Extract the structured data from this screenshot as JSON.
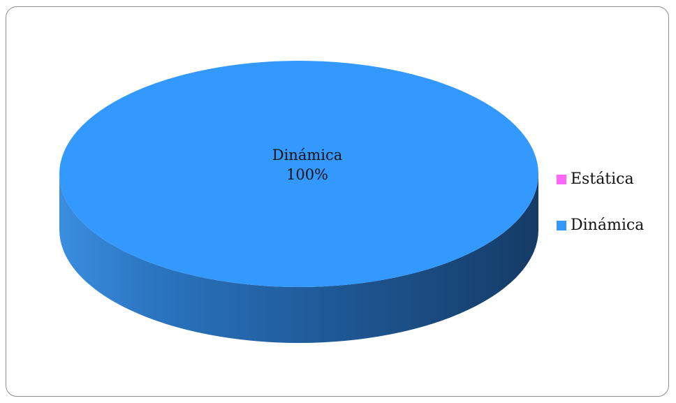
{
  "chart_data": {
    "type": "pie",
    "style": "3d",
    "categories": [
      "Estática",
      "Dinámica"
    ],
    "values": [
      0,
      100
    ],
    "colors": {
      "Estática": "#FF66FF",
      "Dinámica": "#3399FF"
    },
    "data_labels": [
      {
        "category": "Dinámica",
        "percent": "100%"
      }
    ],
    "legend_position": "right"
  }
}
